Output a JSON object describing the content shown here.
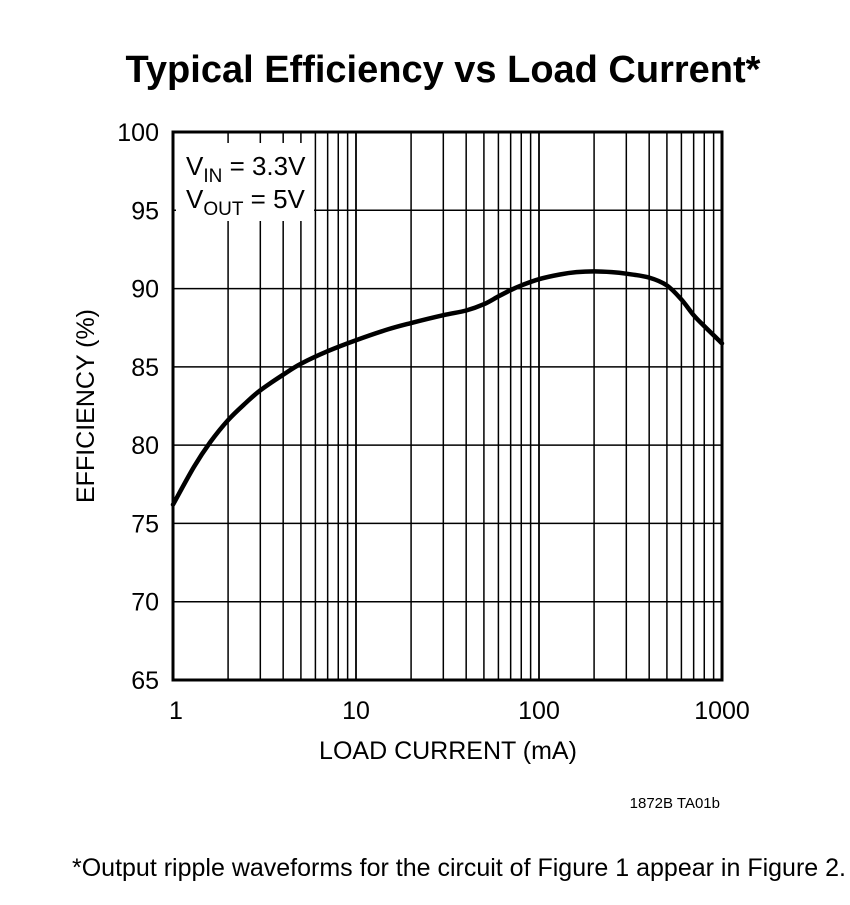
{
  "chart_data": {
    "type": "line",
    "title": "Typical Efficiency vs Load Current*",
    "xlabel": "LOAD CURRENT (mA)",
    "ylabel": "EFFICIENCY (%)",
    "xscale": "log",
    "xlim": [
      1,
      1000
    ],
    "ylim": [
      65,
      100
    ],
    "x_ticks": [
      1,
      10,
      100,
      1000
    ],
    "x_tick_labels": [
      "1",
      "10",
      "100",
      "1000"
    ],
    "y_ticks": [
      65,
      70,
      75,
      80,
      85,
      90,
      95,
      100
    ],
    "y_tick_labels": [
      "65",
      "70",
      "75",
      "80",
      "85",
      "90",
      "95",
      "100"
    ],
    "grid": true,
    "conditions": {
      "vin": {
        "main": "V",
        "sub": "IN",
        "rest": " = 3.3V"
      },
      "vout": {
        "main": "V",
        "sub": "OUT",
        "rest": " = 5V"
      }
    },
    "series": [
      {
        "name": "Efficiency",
        "x": [
          1,
          1.3,
          1.6,
          2,
          2.5,
          3,
          4,
          5,
          7,
          10,
          15,
          20,
          30,
          40,
          50,
          60,
          70,
          80,
          100,
          130,
          160,
          200,
          250,
          300,
          400,
          500,
          600,
          700,
          800,
          1000
        ],
        "y": [
          76.2,
          78.6,
          80.2,
          81.6,
          82.7,
          83.5,
          84.5,
          85.2,
          86.0,
          86.7,
          87.4,
          87.8,
          88.3,
          88.6,
          89.0,
          89.5,
          89.9,
          90.2,
          90.6,
          90.9,
          91.05,
          91.1,
          91.05,
          90.95,
          90.7,
          90.2,
          89.3,
          88.3,
          87.6,
          86.5
        ]
      }
    ]
  },
  "part_code": "1872B TA01b",
  "footnote": "*Output ripple waveforms for the circuit of Figure 1 appear in Figure 2."
}
